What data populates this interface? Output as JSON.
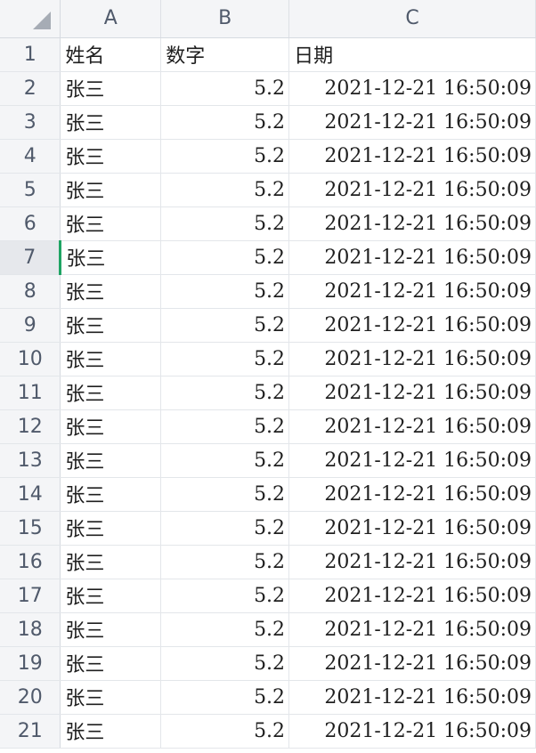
{
  "columns": [
    "A",
    "B",
    "C"
  ],
  "header_row": {
    "row_number": "1",
    "name": "姓名",
    "number": "数字",
    "date": "日期"
  },
  "active_row": "7",
  "rows": [
    {
      "row_number": "2",
      "name": "张三",
      "number": "5.2",
      "date": "2021-12-21 16:50:09"
    },
    {
      "row_number": "3",
      "name": "张三",
      "number": "5.2",
      "date": "2021-12-21 16:50:09"
    },
    {
      "row_number": "4",
      "name": "张三",
      "number": "5.2",
      "date": "2021-12-21 16:50:09"
    },
    {
      "row_number": "5",
      "name": "张三",
      "number": "5.2",
      "date": "2021-12-21 16:50:09"
    },
    {
      "row_number": "6",
      "name": "张三",
      "number": "5.2",
      "date": "2021-12-21 16:50:09"
    },
    {
      "row_number": "7",
      "name": "张三",
      "number": "5.2",
      "date": "2021-12-21 16:50:09"
    },
    {
      "row_number": "8",
      "name": "张三",
      "number": "5.2",
      "date": "2021-12-21 16:50:09"
    },
    {
      "row_number": "9",
      "name": "张三",
      "number": "5.2",
      "date": "2021-12-21 16:50:09"
    },
    {
      "row_number": "10",
      "name": "张三",
      "number": "5.2",
      "date": "2021-12-21 16:50:09"
    },
    {
      "row_number": "11",
      "name": "张三",
      "number": "5.2",
      "date": "2021-12-21 16:50:09"
    },
    {
      "row_number": "12",
      "name": "张三",
      "number": "5.2",
      "date": "2021-12-21 16:50:09"
    },
    {
      "row_number": "13",
      "name": "张三",
      "number": "5.2",
      "date": "2021-12-21 16:50:09"
    },
    {
      "row_number": "14",
      "name": "张三",
      "number": "5.2",
      "date": "2021-12-21 16:50:09"
    },
    {
      "row_number": "15",
      "name": "张三",
      "number": "5.2",
      "date": "2021-12-21 16:50:09"
    },
    {
      "row_number": "16",
      "name": "张三",
      "number": "5.2",
      "date": "2021-12-21 16:50:09"
    },
    {
      "row_number": "17",
      "name": "张三",
      "number": "5.2",
      "date": "2021-12-21 16:50:09"
    },
    {
      "row_number": "18",
      "name": "张三",
      "number": "5.2",
      "date": "2021-12-21 16:50:09"
    },
    {
      "row_number": "19",
      "name": "张三",
      "number": "5.2",
      "date": "2021-12-21 16:50:09"
    },
    {
      "row_number": "20",
      "name": "张三",
      "number": "5.2",
      "date": "2021-12-21 16:50:09"
    },
    {
      "row_number": "21",
      "name": "张三",
      "number": "5.2",
      "date": "2021-12-21 16:50:09"
    }
  ]
}
